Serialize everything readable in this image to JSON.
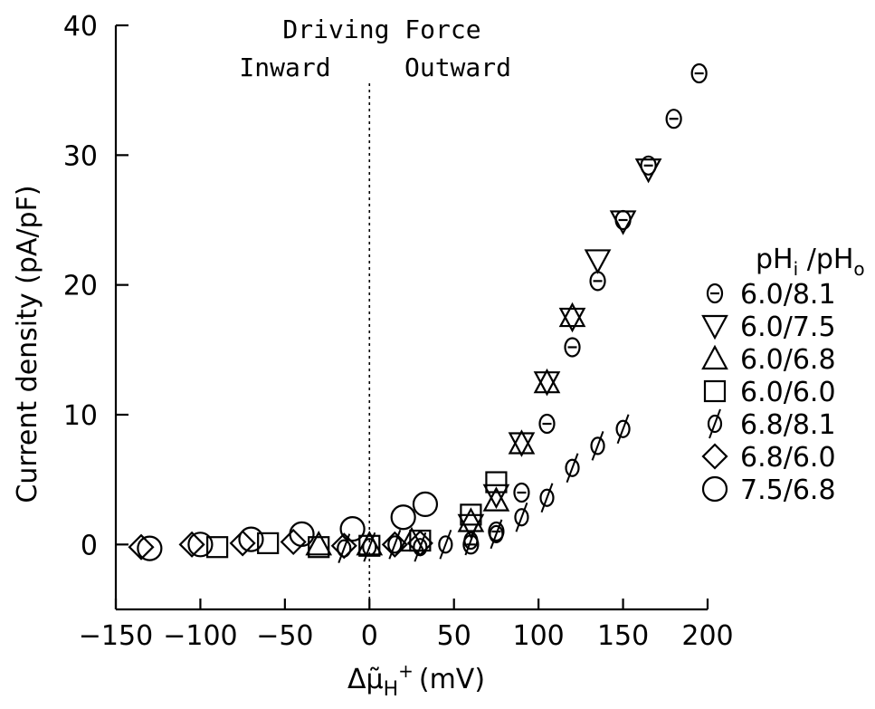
{
  "chart_data": {
    "type": "scatter",
    "xlabel_parts": {
      "main": "Δμ̃",
      "sub": "H",
      "sup": "+",
      "unit": "(mV)"
    },
    "ylabel": "Current density (pA/pF)",
    "xlim": [
      -150,
      200
    ],
    "ylim": [
      -5,
      40
    ],
    "x_ticks": [
      -150,
      -100,
      -50,
      0,
      50,
      100,
      150,
      200
    ],
    "x_tick_labels": [
      "−150",
      "−100",
      "−50",
      "0",
      "50",
      "100",
      "150",
      "200"
    ],
    "y_ticks": [
      0,
      10,
      20,
      30,
      40
    ],
    "y_tick_labels": [
      "0",
      "10",
      "20",
      "30",
      "40"
    ],
    "reference_line": {
      "x": 0,
      "style": "dotted"
    },
    "annotations": {
      "top": "Driving Force",
      "left": "Inward",
      "right": "Outward"
    },
    "legend_title": {
      "main": "pH",
      "sub1": "i",
      "mid": " /pH",
      "sub2": "o"
    },
    "legend_position": "right",
    "series": [
      {
        "name": "6.0/8.1",
        "marker": "theta",
        "points": [
          [
            60,
            0
          ],
          [
            75,
            1
          ],
          [
            90,
            4
          ],
          [
            105,
            9.3
          ],
          [
            120,
            15.2
          ],
          [
            135,
            20.3
          ],
          [
            150,
            25
          ],
          [
            165,
            29.2
          ],
          [
            180,
            32.8
          ],
          [
            195,
            36.3
          ]
        ]
      },
      {
        "name": "6.0/7.5",
        "marker": "triangle-down",
        "points": [
          [
            60,
            1.5
          ],
          [
            75,
            3.8
          ],
          [
            90,
            7.8
          ],
          [
            105,
            12.5
          ],
          [
            120,
            17.4
          ],
          [
            135,
            21.9
          ],
          [
            150,
            24.9
          ],
          [
            165,
            28.9
          ]
        ]
      },
      {
        "name": "6.0/6.8",
        "marker": "triangle-up",
        "points": [
          [
            -30,
            0
          ],
          [
            0,
            0
          ],
          [
            25,
            0.3
          ],
          [
            60,
            1.8
          ],
          [
            75,
            3.4
          ],
          [
            90,
            7.8
          ],
          [
            105,
            12.5
          ],
          [
            120,
            17.6
          ]
        ]
      },
      {
        "name": "6.0/6.0",
        "marker": "square",
        "points": [
          [
            -90,
            -0.2
          ],
          [
            -60,
            0.1
          ],
          [
            -30,
            -0.2
          ],
          [
            0,
            -0.1
          ],
          [
            30,
            0.3
          ],
          [
            60,
            2.3
          ],
          [
            75,
            4.8
          ]
        ]
      },
      {
        "name": "6.8/8.1",
        "marker": "phi",
        "points": [
          [
            -15,
            -0.3
          ],
          [
            0,
            -0.2
          ],
          [
            15,
            0
          ],
          [
            30,
            -0.2
          ],
          [
            45,
            0
          ],
          [
            60,
            0.3
          ],
          [
            75,
            0.8
          ],
          [
            90,
            2.1
          ],
          [
            105,
            3.6
          ],
          [
            120,
            5.9
          ],
          [
            135,
            7.6
          ],
          [
            150,
            8.9
          ]
        ]
      },
      {
        "name": "6.8/6.0",
        "marker": "diamond",
        "points": [
          [
            -135,
            -0.2
          ],
          [
            -105,
            0
          ],
          [
            -75,
            0.1
          ],
          [
            -45,
            0.2
          ],
          [
            -15,
            -0.1
          ],
          [
            15,
            0
          ],
          [
            30,
            0.1
          ]
        ]
      },
      {
        "name": "7.5/6.8",
        "marker": "circle",
        "points": [
          [
            -130,
            -0.3
          ],
          [
            -100,
            0
          ],
          [
            -70,
            0.4
          ],
          [
            -40,
            0.8
          ],
          [
            -10,
            1.2
          ],
          [
            20,
            2.1
          ],
          [
            33,
            3.1
          ]
        ]
      }
    ]
  }
}
